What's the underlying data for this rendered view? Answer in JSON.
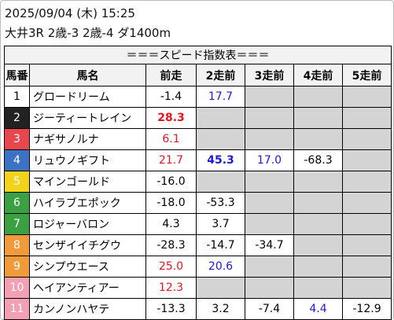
{
  "header": {
    "datetime": "2025/09/04 (木) 15:25",
    "race": "大井3R 2歳-3 2歳-4 ダ1400m"
  },
  "table": {
    "title": "＝＝＝スピード指数表＝＝＝",
    "columns": [
      "馬番",
      "馬名",
      "前走",
      "2走前",
      "3走前",
      "4走前",
      "5走前"
    ],
    "rows": [
      {
        "no": "1",
        "name": "グロードリーム",
        "frame_color": "#ffffff",
        "no_color": "#000000",
        "cells": [
          {
            "text": "-1.4"
          },
          {
            "text": "17.7",
            "color": "#1a1adb"
          },
          null,
          null,
          null
        ]
      },
      {
        "no": "2",
        "name": "ジーティートレイン",
        "frame_color": "#222222",
        "no_color": "#ffffff",
        "cells": [
          {
            "text": "28.3",
            "color": "#e8141e",
            "bold": true
          },
          null,
          null,
          null,
          null
        ]
      },
      {
        "no": "3",
        "name": "ナギサノルナ",
        "frame_color": "#e8474d",
        "no_color": "#ffffff",
        "cells": [
          {
            "text": "6.1",
            "color": "#e8141e"
          },
          null,
          null,
          null,
          null
        ]
      },
      {
        "no": "4",
        "name": "リュウノギフト",
        "frame_color": "#3b72c4",
        "no_color": "#ffffff",
        "cells": [
          {
            "text": "21.7",
            "color": "#e8141e"
          },
          {
            "text": "45.3",
            "color": "#1a1adb",
            "bold": true
          },
          {
            "text": "17.0",
            "color": "#1a1adb"
          },
          {
            "text": "-68.3"
          },
          null
        ]
      },
      {
        "no": "5",
        "name": "マインゴールド",
        "frame_color": "#f1d31a",
        "no_color": "#ffffff",
        "cells": [
          {
            "text": "-16.0"
          },
          null,
          null,
          null,
          null
        ]
      },
      {
        "no": "6",
        "name": "ハイラブエポック",
        "frame_color": "#3aa042",
        "no_color": "#ffffff",
        "cells": [
          {
            "text": "-18.0"
          },
          {
            "text": "-53.3"
          },
          null,
          null,
          null
        ]
      },
      {
        "no": "7",
        "name": "ロジャーバロン",
        "frame_color": "#3aa042",
        "no_color": "#ffffff",
        "cells": [
          {
            "text": "4.3"
          },
          {
            "text": "3.7"
          },
          null,
          null,
          null
        ]
      },
      {
        "no": "8",
        "name": "センザイイチグウ",
        "frame_color": "#f09a3a",
        "no_color": "#ffffff",
        "cells": [
          {
            "text": "-28.3"
          },
          {
            "text": "-14.7"
          },
          {
            "text": "-34.7"
          },
          null,
          null
        ]
      },
      {
        "no": "9",
        "name": "シンプウエース",
        "frame_color": "#f09a3a",
        "no_color": "#ffffff",
        "cells": [
          {
            "text": "25.0",
            "color": "#e8141e"
          },
          {
            "text": "20.6",
            "color": "#1a1adb"
          },
          null,
          null,
          null
        ]
      },
      {
        "no": "10",
        "name": "ヘイアンティアー",
        "frame_color": "#f3a0b4",
        "no_color": "#ffffff",
        "cells": [
          {
            "text": "12.3",
            "color": "#e8141e"
          },
          null,
          null,
          null,
          null
        ]
      },
      {
        "no": "11",
        "name": "カンノンハヤテ",
        "frame_color": "#f3a0b4",
        "no_color": "#ffffff",
        "cells": [
          {
            "text": "-13.3"
          },
          {
            "text": "3.2"
          },
          {
            "text": "-7.4"
          },
          {
            "text": "4.4",
            "color": "#1a1adb"
          },
          {
            "text": "-12.9"
          }
        ]
      }
    ]
  }
}
